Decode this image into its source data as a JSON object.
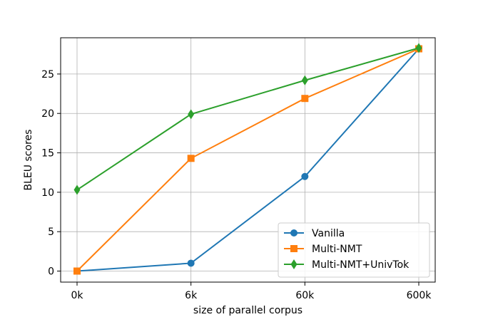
{
  "chart_data": {
    "type": "line",
    "categories": [
      "0k",
      "6k",
      "60k",
      "600k"
    ],
    "xlabel": "size of parallel corpus",
    "ylabel": "BLEU scores",
    "ylim": [
      -1.4,
      29.6
    ],
    "yticks": [
      0,
      5,
      10,
      15,
      20,
      25
    ],
    "grid": true,
    "legend_position": "lower-right",
    "series": [
      {
        "name": "Vanilla",
        "marker": "circle",
        "color": "#1f77b4",
        "values": [
          0.0,
          1.0,
          12.0,
          28.2
        ]
      },
      {
        "name": "Multi-NMT",
        "marker": "square",
        "color": "#ff7f0e",
        "values": [
          0.0,
          14.3,
          21.9,
          28.2
        ]
      },
      {
        "name": "Multi-NMT+UnivTok",
        "marker": "diamond",
        "color": "#2ca02c",
        "values": [
          10.3,
          19.9,
          24.2,
          28.3
        ]
      }
    ]
  }
}
